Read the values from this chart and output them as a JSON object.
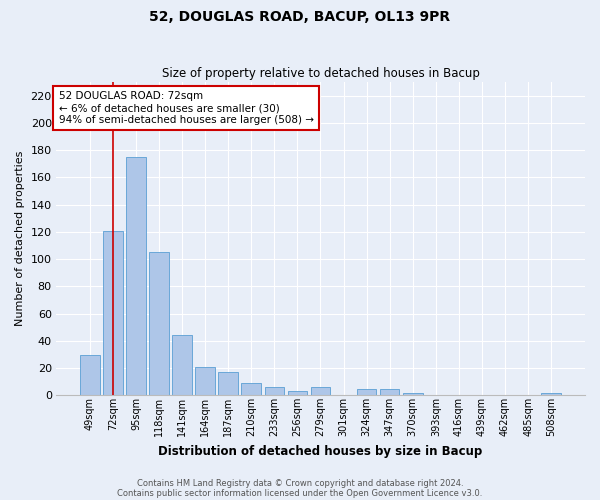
{
  "title1": "52, DOUGLAS ROAD, BACUP, OL13 9PR",
  "title2": "Size of property relative to detached houses in Bacup",
  "xlabel": "Distribution of detached houses by size in Bacup",
  "ylabel": "Number of detached properties",
  "categories": [
    "49sqm",
    "72sqm",
    "95sqm",
    "118sqm",
    "141sqm",
    "164sqm",
    "187sqm",
    "210sqm",
    "233sqm",
    "256sqm",
    "279sqm",
    "301sqm",
    "324sqm",
    "347sqm",
    "370sqm",
    "393sqm",
    "416sqm",
    "439sqm",
    "462sqm",
    "485sqm",
    "508sqm"
  ],
  "values": [
    30,
    121,
    175,
    105,
    44,
    21,
    17,
    9,
    6,
    3,
    6,
    0,
    5,
    5,
    2,
    0,
    0,
    0,
    0,
    0,
    2
  ],
  "bar_color": "#aec6e8",
  "bar_edge_color": "#5a9fd4",
  "highlight_index": 1,
  "highlight_color": "#cc0000",
  "ylim": [
    0,
    230
  ],
  "yticks": [
    0,
    20,
    40,
    60,
    80,
    100,
    120,
    140,
    160,
    180,
    200,
    220
  ],
  "annotation_title": "52 DOUGLAS ROAD: 72sqm",
  "annotation_line1": "← 6% of detached houses are smaller (30)",
  "annotation_line2": "94% of semi-detached houses are larger (508) →",
  "annotation_box_color": "#ffffff",
  "annotation_border_color": "#cc0000",
  "footer1": "Contains HM Land Registry data © Crown copyright and database right 2024.",
  "footer2": "Contains public sector information licensed under the Open Government Licence v3.0.",
  "background_color": "#e8eef8",
  "fig_background_color": "#e8eef8",
  "grid_color": "#ffffff"
}
